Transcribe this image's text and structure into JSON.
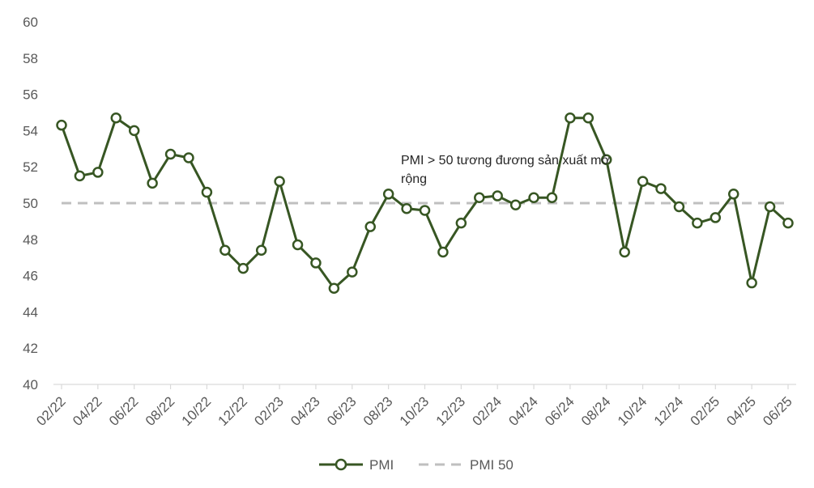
{
  "chart_data": {
    "type": "line",
    "title": "",
    "xlabel": "",
    "ylabel": "",
    "ylim": [
      40,
      60
    ],
    "yticks": [
      40,
      42,
      44,
      46,
      48,
      50,
      52,
      54,
      56,
      58,
      60
    ],
    "ytick_labels": [
      "40",
      "42",
      "44",
      "46",
      "48",
      "50",
      "52",
      "54",
      "56",
      "58",
      "60"
    ],
    "categories": [
      "02/22",
      "03/22",
      "04/22",
      "05/22",
      "06/22",
      "07/22",
      "08/22",
      "09/22",
      "10/22",
      "11/22",
      "12/22",
      "01/23",
      "02/23",
      "03/23",
      "04/23",
      "05/23",
      "06/23",
      "07/23",
      "08/23",
      "09/23",
      "10/23",
      "11/23",
      "12/23",
      "01/24",
      "02/24",
      "03/24",
      "04/24",
      "05/24",
      "06/24",
      "07/24",
      "08/24",
      "09/24",
      "10/24",
      "11/24",
      "12/24",
      "01/25",
      "02/25",
      "03/25",
      "04/25",
      "05/25",
      "06/25"
    ],
    "xtick_labels": [
      "02/22",
      "04/22",
      "06/22",
      "08/22",
      "10/22",
      "12/22",
      "02/23",
      "04/23",
      "06/23",
      "08/23",
      "10/23",
      "12/23",
      "02/24",
      "04/24",
      "06/24",
      "08/24",
      "10/24",
      "12/24",
      "02/25",
      "04/25",
      "06/25"
    ],
    "series": [
      {
        "name": "PMI",
        "color": "#375623",
        "values": [
          54.3,
          51.5,
          51.7,
          54.7,
          54.0,
          51.1,
          52.7,
          52.5,
          50.6,
          47.4,
          46.4,
          47.4,
          51.2,
          47.7,
          46.7,
          45.3,
          46.2,
          48.7,
          50.5,
          49.7,
          49.6,
          47.3,
          48.9,
          50.3,
          50.4,
          49.9,
          50.3,
          50.3,
          54.7,
          54.7,
          52.4,
          47.3,
          51.2,
          50.8,
          49.8,
          48.9,
          49.2,
          50.5,
          45.6,
          49.8,
          48.9
        ]
      },
      {
        "name": "PMI 50",
        "color": "#BFBFBF",
        "style": "dashed",
        "values": [
          50,
          50,
          50,
          50,
          50,
          50,
          50,
          50,
          50,
          50,
          50,
          50,
          50,
          50,
          50,
          50,
          50,
          50,
          50,
          50,
          50,
          50,
          50,
          50,
          50,
          50,
          50,
          50,
          50,
          50,
          50,
          50,
          50,
          50,
          50,
          50,
          50,
          50,
          50,
          50,
          50
        ]
      }
    ],
    "annotation": {
      "line1": "PMI > 50 tương đương sản xuất mở",
      "line2": "rộng"
    },
    "legend": {
      "position": "bottom",
      "entries": [
        "PMI",
        "PMI 50"
      ]
    },
    "grid": false
  }
}
